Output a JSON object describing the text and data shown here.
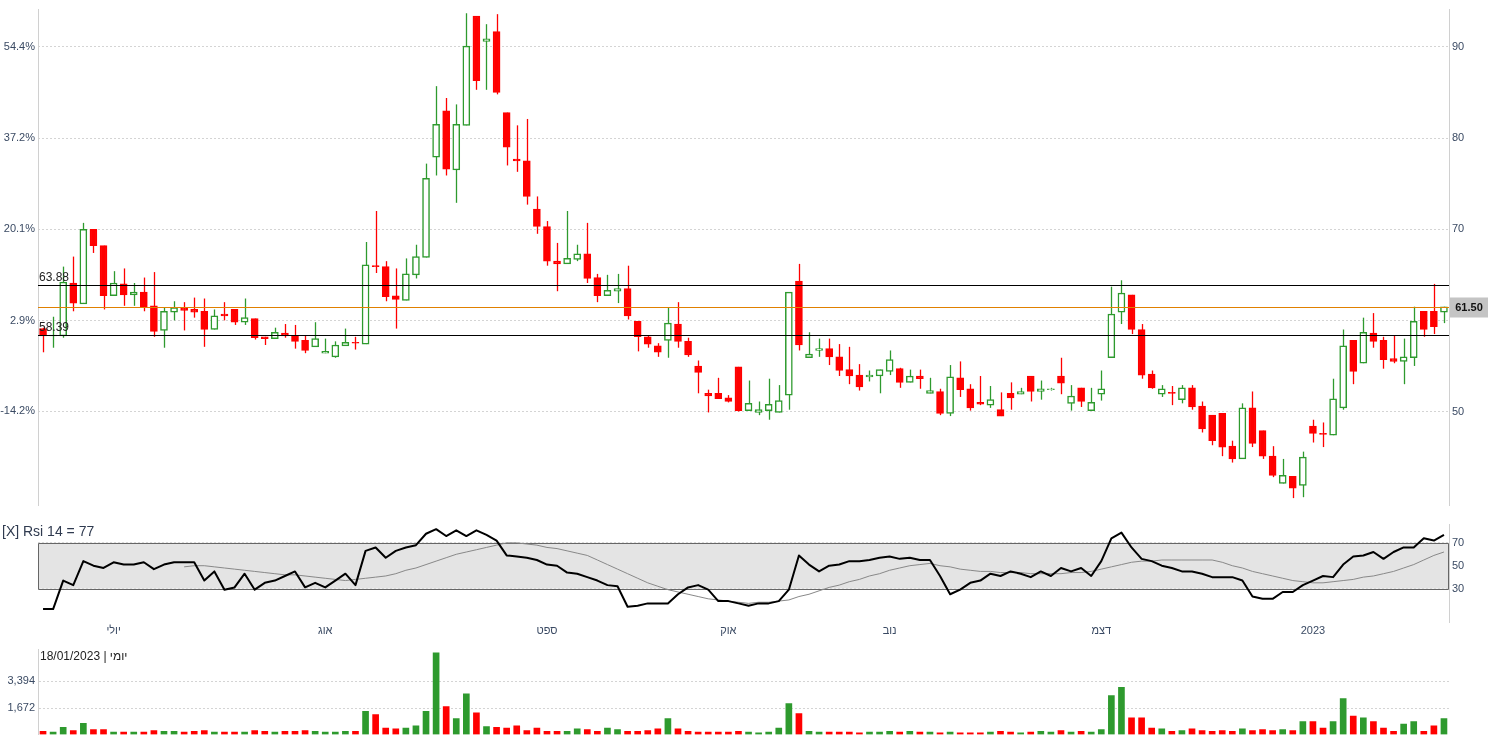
{
  "chart_data": [
    {
      "type": "candlestick",
      "categories": [
        null,
        null,
        null,
        null,
        null,
        null,
        null,
        null,
        null,
        null,
        null,
        null,
        null,
        null,
        null,
        null,
        null,
        null,
        null,
        null,
        null,
        null,
        null,
        null,
        null,
        null,
        null,
        null,
        null,
        null,
        null,
        null,
        null,
        null,
        null,
        null,
        null,
        null,
        null,
        null,
        null,
        null,
        null,
        null,
        null,
        null,
        null,
        null,
        null,
        null,
        null,
        null,
        null,
        null,
        null,
        null,
        null,
        null,
        null,
        null,
        null,
        null,
        null,
        null,
        null,
        null,
        null,
        null,
        null,
        null,
        null,
        null,
        null,
        null,
        null,
        null,
        null,
        null,
        null,
        null,
        null,
        null,
        null,
        null,
        null,
        null,
        null,
        null,
        null,
        null,
        null,
        null,
        null,
        null,
        null,
        null,
        null,
        null,
        null,
        null,
        null,
        null,
        null,
        null,
        null,
        null,
        null,
        null,
        null,
        null,
        null,
        null,
        null,
        null,
        null,
        null,
        null,
        null,
        null,
        null,
        null,
        null,
        null,
        null,
        null,
        null,
        null,
        null,
        null,
        null,
        null,
        null,
        null,
        null,
        null,
        null,
        null,
        null,
        null,
        null
      ],
      "ohlc": [
        [
          59.1,
          59.2,
          56.5,
          58.3
        ],
        [
          58.3,
          60.4,
          57.0,
          58.4
        ],
        [
          58.3,
          65.9,
          58.1,
          64.2
        ],
        [
          64.1,
          67.0,
          61.0,
          61.9
        ],
        [
          61.8,
          70.7,
          61.8,
          70.0
        ],
        [
          70.0,
          70.0,
          67.4,
          68.2
        ],
        [
          68.2,
          68.2,
          61.2,
          62.7
        ],
        [
          62.7,
          65.4,
          62.7,
          64.1
        ],
        [
          64.0,
          65.7,
          61.6,
          62.8
        ],
        [
          62.8,
          64.1,
          61.6,
          63.1
        ],
        [
          63.1,
          64.7,
          61.0,
          61.5
        ],
        [
          61.6,
          65.3,
          58.2,
          58.8
        ],
        [
          58.9,
          61.4,
          57.0,
          61.0
        ],
        [
          60.9,
          62.1,
          60.0,
          61.4
        ],
        [
          61.4,
          62.0,
          58.9,
          61.1
        ],
        [
          61.2,
          62.5,
          60.3,
          60.9
        ],
        [
          61.0,
          62.4,
          57.1,
          59.0
        ],
        [
          59.0,
          61.2,
          59.0,
          60.5
        ],
        [
          60.7,
          62.0,
          60.0,
          60.5
        ],
        [
          61.2,
          61.2,
          59.5,
          59.8
        ],
        [
          59.8,
          62.4,
          59.5,
          60.3
        ],
        [
          60.2,
          60.2,
          57.9,
          58.1
        ],
        [
          58.2,
          58.2,
          57.3,
          58.0
        ],
        [
          58.0,
          59.2,
          58.0,
          58.7
        ],
        [
          58.6,
          59.6,
          58.1,
          58.3
        ],
        [
          58.3,
          59.5,
          56.9,
          57.7
        ],
        [
          57.8,
          58.4,
          56.4,
          56.7
        ],
        [
          57.1,
          59.8,
          57.1,
          58.0
        ],
        [
          56.4,
          58.0,
          56.4,
          56.6
        ],
        [
          56.0,
          57.7,
          55.9,
          57.3
        ],
        [
          57.2,
          59.1,
          57.2,
          57.6
        ],
        [
          57.6,
          58.2,
          56.8,
          57.5
        ],
        [
          57.4,
          68.6,
          57.4,
          66.1
        ],
        [
          66.0,
          72.0,
          65.2,
          65.9
        ],
        [
          65.9,
          66.5,
          62.1,
          62.6
        ],
        [
          62.7,
          65.7,
          59.1,
          62.3
        ],
        [
          62.2,
          66.8,
          62.2,
          65.1
        ],
        [
          65.0,
          68.3,
          64.6,
          67.0
        ],
        [
          66.9,
          77.2,
          66.9,
          75.6
        ],
        [
          77.9,
          85.7,
          75.9,
          81.5
        ],
        [
          83.0,
          84.4,
          75.9,
          76.6
        ],
        [
          76.5,
          83.7,
          72.9,
          81.5
        ],
        [
          81.4,
          93.7,
          81.4,
          90.1
        ],
        [
          93.4,
          93.4,
          85.3,
          86.3
        ],
        [
          90.6,
          92.5,
          85.3,
          90.9
        ],
        [
          91.7,
          93.6,
          84.8,
          85.0
        ],
        [
          82.8,
          82.8,
          77.0,
          79.0
        ],
        [
          77.7,
          81.4,
          76.3,
          77.5
        ],
        [
          77.5,
          82.1,
          72.7,
          73.6
        ],
        [
          72.2,
          73.6,
          69.5,
          70.3
        ],
        [
          70.3,
          70.9,
          66.0,
          66.5
        ],
        [
          66.5,
          68.5,
          63.2,
          66.2
        ],
        [
          66.2,
          72.0,
          66.2,
          66.8
        ],
        [
          66.7,
          68.3,
          66.5,
          67.3
        ],
        [
          67.3,
          70.7,
          64.1,
          64.6
        ],
        [
          64.7,
          65.1,
          62.0,
          62.7
        ],
        [
          62.7,
          65.0,
          62.7,
          63.3
        ],
        [
          63.2,
          65.1,
          61.9,
          63.5
        ],
        [
          63.5,
          66.0,
          60.1,
          60.5
        ],
        [
          59.9,
          59.9,
          56.6,
          58.2
        ],
        [
          58.2,
          58.4,
          57.0,
          57.4
        ],
        [
          57.2,
          57.5,
          56.0,
          56.5
        ],
        [
          57.8,
          61.4,
          55.9,
          59.7
        ],
        [
          59.6,
          62.0,
          57.0,
          57.7
        ],
        [
          57.7,
          58.1,
          56.0,
          56.2
        ],
        [
          55.0,
          55.6,
          52.0,
          54.3
        ],
        [
          52.0,
          52.4,
          49.9,
          51.7
        ],
        [
          52.0,
          53.7,
          51.4,
          51.4
        ],
        [
          51.5,
          51.8,
          51.0,
          51.1
        ],
        [
          54.9,
          54.9,
          50.0,
          50.1
        ],
        [
          50.1,
          53.4,
          50.1,
          50.9
        ],
        [
          49.9,
          51.1,
          49.6,
          50.2
        ],
        [
          50.1,
          53.6,
          49.1,
          50.8
        ],
        [
          49.9,
          52.9,
          49.9,
          51.2
        ],
        [
          51.8,
          63.1,
          50.2,
          63.1
        ],
        [
          64.3,
          66.2,
          56.7,
          57.3
        ],
        [
          55.9,
          58.7,
          55.9,
          56.3
        ],
        [
          56.7,
          58.0,
          56.0,
          56.9
        ],
        [
          56.9,
          58.0,
          55.1,
          56.0
        ],
        [
          56.0,
          57.4,
          53.9,
          54.5
        ],
        [
          54.6,
          57.1,
          53.0,
          53.9
        ],
        [
          54.0,
          55.2,
          52.3,
          52.7
        ],
        [
          53.8,
          54.5,
          53.3,
          54.0
        ],
        [
          53.9,
          54.6,
          52.0,
          54.6
        ],
        [
          54.4,
          56.7,
          54.0,
          55.7
        ],
        [
          54.7,
          54.8,
          52.6,
          53.2
        ],
        [
          53.2,
          54.6,
          53.2,
          53.9
        ],
        [
          53.9,
          54.6,
          52.5,
          53.6
        ],
        [
          52.0,
          53.7,
          52.0,
          52.3
        ],
        [
          52.2,
          52.5,
          49.6,
          49.8
        ],
        [
          49.8,
          55.1,
          49.5,
          53.8
        ],
        [
          53.7,
          55.5,
          51.6,
          52.4
        ],
        [
          52.5,
          53.0,
          50.1,
          50.4
        ],
        [
          51.0,
          53.9,
          50.7,
          50.8
        ],
        [
          50.7,
          52.8,
          50.4,
          51.3
        ],
        [
          50.2,
          52.1,
          49.5,
          49.5
        ],
        [
          52.0,
          53.2,
          50.2,
          51.5
        ],
        [
          51.9,
          52.6,
          51.9,
          52.2
        ],
        [
          53.9,
          53.9,
          51.1,
          52.2
        ],
        [
          52.2,
          53.4,
          51.3,
          52.5
        ],
        [
          52.4,
          52.6,
          52.3,
          52.5
        ],
        [
          53.9,
          55.9,
          51.9,
          53.1
        ],
        [
          50.9,
          52.9,
          50.1,
          51.7
        ],
        [
          52.6,
          52.6,
          50.5,
          51.1
        ],
        [
          50.1,
          52.6,
          50.1,
          51.0
        ],
        [
          51.9,
          54.5,
          51.2,
          52.5
        ],
        [
          55.9,
          63.7,
          55.9,
          60.7
        ],
        [
          60.9,
          64.4,
          59.6,
          63.0
        ],
        [
          62.8,
          62.8,
          58.5,
          59.0
        ],
        [
          59.0,
          59.6,
          53.6,
          54.0
        ],
        [
          54.1,
          54.5,
          52.5,
          52.6
        ],
        [
          51.9,
          52.9,
          51.6,
          52.5
        ],
        [
          52.1,
          52.8,
          50.7,
          52.0
        ],
        [
          51.3,
          52.9,
          50.9,
          52.6
        ],
        [
          52.6,
          52.9,
          50.2,
          50.5
        ],
        [
          50.6,
          51.1,
          47.7,
          48.1
        ],
        [
          49.6,
          49.6,
          46.3,
          46.8
        ],
        [
          49.8,
          49.8,
          45.1,
          46.1
        ],
        [
          46.2,
          46.8,
          44.4,
          44.8
        ],
        [
          44.8,
          50.9,
          44.8,
          50.4
        ],
        [
          50.4,
          52.2,
          46.1,
          46.5
        ],
        [
          47.9,
          47.9,
          44.8,
          45.1
        ],
        [
          45.1,
          46.2,
          42.8,
          43.0
        ],
        [
          42.1,
          44.8,
          42.1,
          43.0
        ],
        [
          42.9,
          42.9,
          40.5,
          41.6
        ],
        [
          41.9,
          45.6,
          40.6,
          45.0
        ],
        [
          48.4,
          49.1,
          46.6,
          47.6
        ],
        [
          47.6,
          48.8,
          46.1,
          47.5
        ],
        [
          47.4,
          53.6,
          47.4,
          51.4
        ],
        [
          50.4,
          59.0,
          50.2,
          57.2
        ],
        [
          57.8,
          57.8,
          53.0,
          54.4
        ],
        [
          55.3,
          60.3,
          55.3,
          58.7
        ],
        [
          58.6,
          60.8,
          57.0,
          57.7
        ],
        [
          57.8,
          58.2,
          54.7,
          55.7
        ],
        [
          55.8,
          58.4,
          55.3,
          55.5
        ],
        [
          55.5,
          58.0,
          53.0,
          56.0
        ],
        [
          55.9,
          61.5,
          55.0,
          59.9
        ],
        [
          61.0,
          61.0,
          58.2,
          59.0
        ],
        [
          61.0,
          64.0,
          58.5,
          59.3
        ],
        [
          60.9,
          61.5,
          59.7,
          61.5
        ]
      ],
      "colors": [
        "#ff0000",
        "#2e9a2e",
        "#2e9a2e",
        "#ff0000",
        "#2e9a2e",
        "#ff0000",
        "#ff0000",
        "#2e9a2e",
        "#ff0000",
        "#2e9a2e",
        "#ff0000",
        "#ff0000",
        "#2e9a2e",
        "#2e9a2e",
        "#ff0000",
        "#ff0000",
        "#ff0000",
        "#2e9a2e",
        "#ff0000",
        "#ff0000",
        "#2e9a2e",
        "#ff0000",
        "#ff0000",
        "#2e9a2e",
        "#ff0000",
        "#ff0000",
        "#ff0000",
        "#2e9a2e",
        "#2e9a2e",
        "#2e9a2e",
        "#2e9a2e",
        "#ff0000",
        "#2e9a2e",
        "#ff0000",
        "#ff0000",
        "#ff0000",
        "#2e9a2e",
        "#2e9a2e",
        "#2e9a2e",
        "#2e9a2e",
        "#ff0000",
        "#2e9a2e",
        "#2e9a2e",
        "#ff0000",
        "#2e9a2e",
        "#ff0000",
        "#ff0000",
        "#ff0000",
        "#ff0000",
        "#ff0000",
        "#ff0000",
        "#ff0000",
        "#2e9a2e",
        "#2e9a2e",
        "#ff0000",
        "#ff0000",
        "#2e9a2e",
        "#2e9a2e",
        "#ff0000",
        "#ff0000",
        "#ff0000",
        "#ff0000",
        "#2e9a2e",
        "#ff0000",
        "#ff0000",
        "#ff0000",
        "#ff0000",
        "#ff0000",
        "#ff0000",
        "#ff0000",
        "#2e9a2e",
        "#2e9a2e",
        "#2e9a2e",
        "#2e9a2e",
        "#2e9a2e",
        "#ff0000",
        "#2e9a2e",
        "#2e9a2e",
        "#ff0000",
        "#ff0000",
        "#ff0000",
        "#ff0000",
        "#2e9a2e",
        "#2e9a2e",
        "#2e9a2e",
        "#ff0000",
        "#2e9a2e",
        "#ff0000",
        "#2e9a2e",
        "#ff0000",
        "#2e9a2e",
        "#ff0000",
        "#ff0000",
        "#ff0000",
        "#2e9a2e",
        "#ff0000",
        "#ff0000",
        "#2e9a2e",
        "#ff0000",
        "#2e9a2e",
        "#2e9a2e",
        "#ff0000",
        "#2e9a2e",
        "#ff0000",
        "#2e9a2e",
        "#2e9a2e",
        "#2e9a2e",
        "#2e9a2e",
        "#ff0000",
        "#ff0000",
        "#ff0000",
        "#2e9a2e",
        "#ff0000",
        "#2e9a2e",
        "#ff0000",
        "#ff0000",
        "#ff0000",
        "#ff0000",
        "#ff0000",
        "#2e9a2e",
        "#ff0000",
        "#ff0000",
        "#ff0000",
        "#2e9a2e",
        "#ff0000",
        "#2e9a2e",
        "#ff0000",
        "#ff0000",
        "#2e9a2e",
        "#2e9a2e",
        "#ff0000",
        "#2e9a2e",
        "#ff0000",
        "#ff0000",
        "#ff0000",
        "#2e9a2e",
        "#2e9a2e",
        "#ff0000",
        "#ff0000",
        "#2e9a2e"
      ],
      "ylim": [
        39.7,
        94.1
      ],
      "yticks": [
        90,
        80,
        70,
        {
          "value": 60,
          "label": null
        },
        50
      ],
      "y2lim": [
        -31.9,
        61.4
      ],
      "y2ticks": [
        {
          "value": 54.4,
          "label": "54.4%"
        },
        {
          "value": 37.2,
          "label": "37.2%"
        },
        {
          "value": 20.1,
          "label": "20.1%"
        },
        {
          "value": 2.9,
          "label": "2.9%"
        },
        {
          "value": -14.2,
          "label": "-14.2%"
        }
      ],
      "grid": "y",
      "ref_lines": [
        {
          "axis": "y",
          "value": 63.88,
          "label": "63.88"
        },
        {
          "axis": "y",
          "value": 58.39,
          "label": "58.39"
        },
        {
          "axis": "y",
          "value": 61.5,
          "label": "61.50",
          "color": "#e08000"
        }
      ]
    },
    {
      "type": "line",
      "title": "[X] Rsi 14 = 77",
      "categories": [
        null,
        null,
        null,
        null,
        null,
        null,
        null,
        "יולי",
        null,
        null,
        null,
        null,
        null,
        null,
        null,
        null,
        null,
        null,
        null,
        null,
        null,
        null,
        null,
        null,
        null,
        null,
        null,
        null,
        "אוג",
        null,
        null,
        null,
        null,
        null,
        null,
        null,
        null,
        null,
        null,
        null,
        null,
        null,
        null,
        null,
        null,
        null,
        null,
        null,
        null,
        null,
        "ספט",
        null,
        null,
        null,
        null,
        null,
        null,
        null,
        null,
        null,
        null,
        null,
        null,
        null,
        null,
        null,
        null,
        null,
        "אוק",
        null,
        null,
        null,
        null,
        null,
        null,
        null,
        null,
        null,
        null,
        null,
        null,
        null,
        null,
        null,
        "נוב",
        null,
        null,
        null,
        null,
        null,
        null,
        null,
        null,
        null,
        null,
        null,
        null,
        null,
        null,
        null,
        null,
        null,
        null,
        null,
        null,
        "דצמ",
        null,
        null,
        null,
        null,
        null,
        null,
        null,
        null,
        null,
        null,
        null,
        null,
        null,
        null,
        null,
        null,
        null,
        null,
        null,
        null,
        "2023",
        null,
        null,
        null,
        null,
        null,
        null,
        null,
        null,
        null,
        null,
        null,
        null,
        null
      ],
      "series": [
        {
          "color": "#000000",
          "values": [
            12,
            12,
            37,
            33,
            54,
            50,
            48,
            53,
            51,
            51,
            53,
            47,
            51,
            53,
            53,
            53,
            37,
            45,
            29,
            31,
            43,
            29,
            35,
            37,
            41,
            45,
            31,
            35,
            31,
            37,
            43,
            33,
            63,
            66,
            57,
            63,
            66,
            68,
            78,
            82,
            76,
            81,
            76,
            81,
            77,
            72,
            59,
            58,
            57,
            55,
            51,
            50,
            44,
            43,
            40,
            37,
            33,
            32,
            14,
            15,
            17,
            17,
            17,
            25,
            31,
            33,
            29,
            19,
            19,
            17,
            15,
            17,
            17,
            19,
            29,
            59,
            51,
            45,
            50,
            51,
            54,
            54,
            55,
            57,
            58,
            56,
            57,
            55,
            55,
            41,
            25,
            29,
            35,
            37,
            43,
            41,
            45,
            43,
            40,
            45,
            41,
            48,
            45,
            48,
            41,
            54,
            74,
            79,
            66,
            56,
            54,
            50,
            48,
            45,
            45,
            43,
            40,
            40,
            40,
            37,
            23,
            21,
            21,
            27,
            27,
            33,
            37,
            41,
            40,
            51,
            58,
            59,
            62,
            56,
            62,
            66,
            66,
            74,
            72,
            77
          ]
        },
        {
          "color": "#888888",
          "values": [
            null,
            null,
            null,
            null,
            null,
            null,
            null,
            null,
            null,
            null,
            null,
            null,
            null,
            null,
            49,
            50,
            50,
            49,
            48,
            47,
            46,
            45,
            44,
            43,
            42,
            42,
            41,
            40,
            39,
            38,
            37,
            38,
            39,
            40,
            41,
            43,
            46,
            48,
            51,
            54,
            57,
            60,
            62,
            64,
            66,
            68,
            70,
            70,
            69,
            68,
            66,
            65,
            63,
            61,
            59,
            55,
            51,
            47,
            43,
            39,
            35,
            32,
            29,
            27,
            25,
            23,
            21,
            20,
            19,
            18,
            17,
            18,
            18,
            19,
            20,
            23,
            25,
            28,
            31,
            33,
            36,
            38,
            41,
            43,
            46,
            48,
            50,
            51,
            52,
            50,
            49,
            47,
            46,
            45,
            45,
            44,
            44,
            44,
            43,
            43,
            43,
            43,
            44,
            44,
            45,
            47,
            49,
            51,
            53,
            54,
            54,
            55,
            55,
            55,
            55,
            55,
            55,
            53,
            50,
            48,
            45,
            43,
            41,
            39,
            37,
            36,
            35,
            35,
            36,
            37,
            38,
            40,
            41,
            43,
            45,
            48,
            51,
            55,
            59,
            62
          ]
        }
      ],
      "ylim": [
        0,
        86
      ],
      "yticks": [
        70,
        50,
        30
      ],
      "grid": "y",
      "bands": [
        {
          "axis": "y",
          "from": 30,
          "to": 70,
          "color": "#e4e4e4"
        }
      ]
    },
    {
      "type": "bar",
      "categories": [
        null,
        null,
        null,
        null,
        null,
        null,
        null,
        null,
        null,
        null,
        null,
        null,
        null,
        null,
        null,
        null,
        null,
        null,
        null,
        null,
        null,
        null,
        null,
        null,
        null,
        null,
        null,
        null,
        null,
        null,
        null,
        null,
        null,
        null,
        null,
        null,
        null,
        null,
        null,
        null,
        null,
        null,
        null,
        null,
        null,
        null,
        null,
        null,
        null,
        null,
        null,
        null,
        null,
        null,
        null,
        null,
        null,
        null,
        null,
        null,
        null,
        null,
        null,
        null,
        null,
        null,
        null,
        null,
        null,
        null,
        null,
        null,
        null,
        null,
        null,
        null,
        null,
        null,
        null,
        null,
        null,
        null,
        null,
        null,
        null,
        null,
        null,
        null,
        null,
        null,
        null,
        null,
        null,
        null,
        null,
        null,
        null,
        null,
        null,
        null,
        null,
        null,
        null,
        null,
        null,
        null,
        null,
        null,
        null,
        null,
        null,
        null,
        null,
        null,
        null,
        null,
        null,
        null,
        null,
        null,
        null,
        null,
        null,
        null,
        null,
        null,
        null,
        null,
        null,
        null,
        null,
        null,
        null,
        null,
        null,
        null,
        null,
        null,
        null,
        null
      ],
      "values": [
        200,
        150,
        450,
        250,
        700,
        300,
        300,
        150,
        150,
        150,
        150,
        250,
        200,
        200,
        150,
        200,
        250,
        150,
        150,
        150,
        150,
        250,
        200,
        150,
        200,
        200,
        250,
        200,
        150,
        150,
        200,
        200,
        1470,
        1270,
        400,
        350,
        400,
        550,
        1470,
        5200,
        1770,
        1000,
        2580,
        1370,
        500,
        450,
        400,
        550,
        250,
        400,
        200,
        200,
        200,
        350,
        300,
        200,
        400,
        300,
        200,
        200,
        250,
        350,
        1000,
        350,
        200,
        150,
        150,
        150,
        150,
        200,
        150,
        100,
        150,
        400,
        1970,
        1320,
        200,
        150,
        150,
        150,
        150,
        100,
        150,
        150,
        200,
        150,
        200,
        150,
        150,
        100,
        150,
        100,
        100,
        100,
        150,
        200,
        150,
        100,
        150,
        200,
        150,
        250,
        150,
        200,
        150,
        300,
        2480,
        2990,
        1060,
        1060,
        400,
        350,
        200,
        250,
        350,
        250,
        200,
        250,
        200,
        350,
        250,
        300,
        250,
        300,
        250,
        810,
        810,
        400,
        810,
        2280,
        1160,
        1060,
        810,
        400,
        200,
        650,
        810,
        200,
        550,
        1000
      ],
      "colors": [
        "#ff0000",
        "#2e9a2e",
        "#2e9a2e",
        "#ff0000",
        "#2e9a2e",
        "#ff0000",
        "#ff0000",
        "#2e9a2e",
        "#ff0000",
        "#2e9a2e",
        "#ff0000",
        "#ff0000",
        "#2e9a2e",
        "#2e9a2e",
        "#ff0000",
        "#ff0000",
        "#ff0000",
        "#2e9a2e",
        "#ff0000",
        "#ff0000",
        "#2e9a2e",
        "#ff0000",
        "#ff0000",
        "#2e9a2e",
        "#ff0000",
        "#ff0000",
        "#ff0000",
        "#2e9a2e",
        "#2e9a2e",
        "#2e9a2e",
        "#2e9a2e",
        "#ff0000",
        "#2e9a2e",
        "#ff0000",
        "#ff0000",
        "#ff0000",
        "#2e9a2e",
        "#2e9a2e",
        "#2e9a2e",
        "#2e9a2e",
        "#ff0000",
        "#2e9a2e",
        "#2e9a2e",
        "#ff0000",
        "#2e9a2e",
        "#ff0000",
        "#ff0000",
        "#ff0000",
        "#ff0000",
        "#ff0000",
        "#ff0000",
        "#ff0000",
        "#2e9a2e",
        "#2e9a2e",
        "#ff0000",
        "#ff0000",
        "#2e9a2e",
        "#2e9a2e",
        "#ff0000",
        "#ff0000",
        "#ff0000",
        "#ff0000",
        "#2e9a2e",
        "#ff0000",
        "#ff0000",
        "#ff0000",
        "#ff0000",
        "#ff0000",
        "#ff0000",
        "#ff0000",
        "#2e9a2e",
        "#2e9a2e",
        "#2e9a2e",
        "#2e9a2e",
        "#2e9a2e",
        "#ff0000",
        "#2e9a2e",
        "#2e9a2e",
        "#ff0000",
        "#ff0000",
        "#ff0000",
        "#ff0000",
        "#2e9a2e",
        "#2e9a2e",
        "#2e9a2e",
        "#ff0000",
        "#2e9a2e",
        "#ff0000",
        "#2e9a2e",
        "#ff0000",
        "#2e9a2e",
        "#ff0000",
        "#ff0000",
        "#ff0000",
        "#2e9a2e",
        "#ff0000",
        "#ff0000",
        "#2e9a2e",
        "#ff0000",
        "#2e9a2e",
        "#2e9a2e",
        "#ff0000",
        "#2e9a2e",
        "#ff0000",
        "#2e9a2e",
        "#2e9a2e",
        "#2e9a2e",
        "#2e9a2e",
        "#ff0000",
        "#ff0000",
        "#ff0000",
        "#2e9a2e",
        "#ff0000",
        "#2e9a2e",
        "#ff0000",
        "#ff0000",
        "#ff0000",
        "#ff0000",
        "#ff0000",
        "#2e9a2e",
        "#ff0000",
        "#ff0000",
        "#ff0000",
        "#2e9a2e",
        "#ff0000",
        "#2e9a2e",
        "#ff0000",
        "#ff0000",
        "#2e9a2e",
        "#2e9a2e",
        "#ff0000",
        "#2e9a2e",
        "#ff0000",
        "#ff0000",
        "#ff0000",
        "#2e9a2e",
        "#2e9a2e",
        "#ff0000",
        "#ff0000",
        "#2e9a2e"
      ],
      "ylim": [
        0,
        5400
      ],
      "yticks": [
        {
          "value": 3394,
          "label": "3,394"
        },
        {
          "value": 1672,
          "label": "1,672"
        }
      ],
      "grid": "y",
      "annotations": [
        "יומי | 18/01/2023"
      ]
    }
  ]
}
